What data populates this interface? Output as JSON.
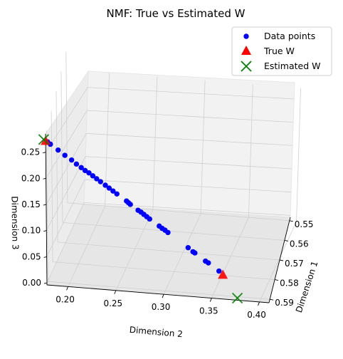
{
  "chart_data": {
    "type": "scatter",
    "title": "NMF: True vs Estimated W",
    "xlabel": "Dimension 2",
    "ylabel": "Dimension 3",
    "zlabel": "Dimension 1",
    "x_ticks": [
      "0.20",
      "0.25",
      "0.30",
      "0.35",
      "0.40"
    ],
    "y_ticks": [
      "0.00",
      "0.05",
      "0.10",
      "0.15",
      "0.20",
      "0.25"
    ],
    "z_ticks": [
      "0.55",
      "0.56",
      "0.57",
      "0.58",
      "0.59"
    ],
    "legend_position": "top-right",
    "grid": true,
    "series": [
      {
        "name": "Data points",
        "color": "#0000ff",
        "marker": "circle",
        "points": [
          {
            "d2": 0.18,
            "d3": 0.27
          },
          {
            "d2": 0.183,
            "d3": 0.266
          },
          {
            "d2": 0.191,
            "d3": 0.256
          },
          {
            "d2": 0.198,
            "d3": 0.247
          },
          {
            "d2": 0.205,
            "d3": 0.239
          },
          {
            "d2": 0.21,
            "d3": 0.232
          },
          {
            "d2": 0.215,
            "d3": 0.226
          },
          {
            "d2": 0.219,
            "d3": 0.221
          },
          {
            "d2": 0.223,
            "d3": 0.217
          },
          {
            "d2": 0.227,
            "d3": 0.212
          },
          {
            "d2": 0.231,
            "d3": 0.207
          },
          {
            "d2": 0.235,
            "d3": 0.202
          },
          {
            "d2": 0.24,
            "d3": 0.196
          },
          {
            "d2": 0.244,
            "d3": 0.191
          },
          {
            "d2": 0.248,
            "d3": 0.186
          },
          {
            "d2": 0.252,
            "d3": 0.181
          },
          {
            "d2": 0.262,
            "d3": 0.169
          },
          {
            "d2": 0.264,
            "d3": 0.166
          },
          {
            "d2": 0.266,
            "d3": 0.163
          },
          {
            "d2": 0.274,
            "d3": 0.153
          },
          {
            "d2": 0.277,
            "d3": 0.15
          },
          {
            "d2": 0.28,
            "d3": 0.146
          },
          {
            "d2": 0.283,
            "d3": 0.142
          },
          {
            "d2": 0.286,
            "d3": 0.138
          },
          {
            "d2": 0.296,
            "d3": 0.126
          },
          {
            "d2": 0.299,
            "d3": 0.122
          },
          {
            "d2": 0.302,
            "d3": 0.119
          },
          {
            "d2": 0.305,
            "d3": 0.115
          },
          {
            "d2": 0.326,
            "d3": 0.089
          },
          {
            "d2": 0.331,
            "d3": 0.082
          },
          {
            "d2": 0.333,
            "d3": 0.08
          },
          {
            "d2": 0.344,
            "d3": 0.066
          },
          {
            "d2": 0.347,
            "d3": 0.063
          },
          {
            "d2": 0.358,
            "d3": 0.049
          }
        ]
      },
      {
        "name": "True W",
        "color": "#ff0000",
        "marker": "triangle",
        "points": [
          {
            "d2": 0.178,
            "d3": 0.272
          },
          {
            "d2": 0.362,
            "d3": 0.043
          }
        ]
      },
      {
        "name": "Estimated W",
        "color": "#008000",
        "marker": "x",
        "points": [
          {
            "d2": 0.176,
            "d3": 0.274
          },
          {
            "d2": 0.377,
            "d3": 0.0
          }
        ]
      }
    ]
  }
}
